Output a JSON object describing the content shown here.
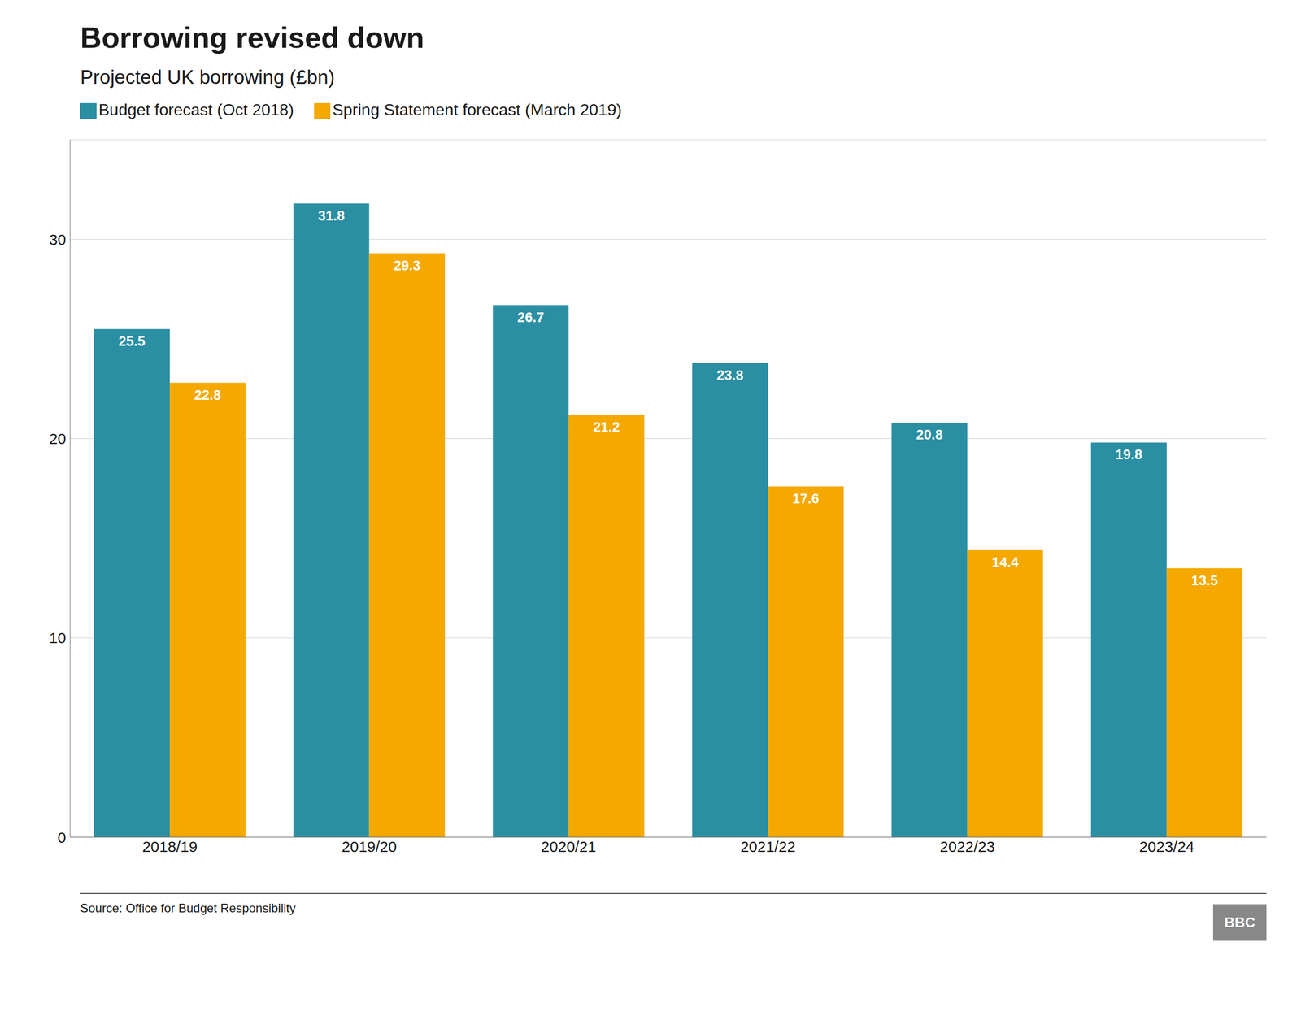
{
  "chart_data": {
    "type": "bar",
    "title": "Borrowing revised down",
    "subtitle": "Projected UK borrowing (£bn)",
    "categories": [
      "2018/19",
      "2019/20",
      "2020/21",
      "2021/22",
      "2022/23",
      "2023/24"
    ],
    "series": [
      {
        "name": "Budget forecast (Oct 2018)",
        "color": "#2b8fa3",
        "values": [
          25.5,
          31.8,
          26.7,
          23.8,
          20.8,
          19.8
        ]
      },
      {
        "name": "Spring Statement forecast (March 2019)",
        "color": "#f5a800",
        "values": [
          22.8,
          29.3,
          21.2,
          17.6,
          14.4,
          13.5
        ]
      }
    ],
    "ylim": [
      0,
      35
    ],
    "yticks": [
      0,
      10,
      20,
      30
    ],
    "grid": true,
    "legend": "upper left",
    "data_labels": true,
    "annotations": [
      "Source: Office for Budget Responsibility",
      "BBC"
    ]
  }
}
